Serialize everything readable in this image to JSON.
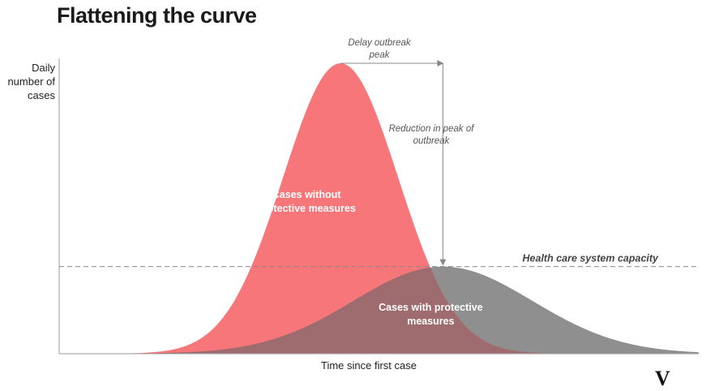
{
  "chart_data": {
    "type": "area",
    "title": "Flattening the curve",
    "xlabel": "Time since first case",
    "ylabel": "Daily number of cases",
    "ylabel_lines": [
      "Daily",
      "number of",
      "cases"
    ],
    "series": [
      {
        "name": "Cases without protective measures",
        "label_lines": [
          "Cases without",
          "protective measures"
        ],
        "peak_x": 0.44,
        "peak_y": 1.0,
        "spread": 0.09,
        "color": "#f7767a"
      },
      {
        "name": "Cases with protective measures",
        "label_lines": [
          "Cases with protective",
          "measures"
        ],
        "peak_x": 0.6,
        "peak_y": 0.3,
        "spread": 0.14,
        "color": "#8f8f8f"
      }
    ],
    "overlap_color": "#9e6b6e",
    "capacity_line": {
      "label": "Health care system capacity",
      "y": 0.3,
      "style": "dashed"
    },
    "annotations": {
      "delay_lines": [
        "Delay outbreak",
        "peak"
      ],
      "reduction_lines": [
        "Reduction in peak of",
        "outbreak"
      ]
    },
    "xlim": [
      0,
      1
    ],
    "ylim": [
      0,
      1
    ],
    "grid": false
  },
  "logo_text": "V"
}
